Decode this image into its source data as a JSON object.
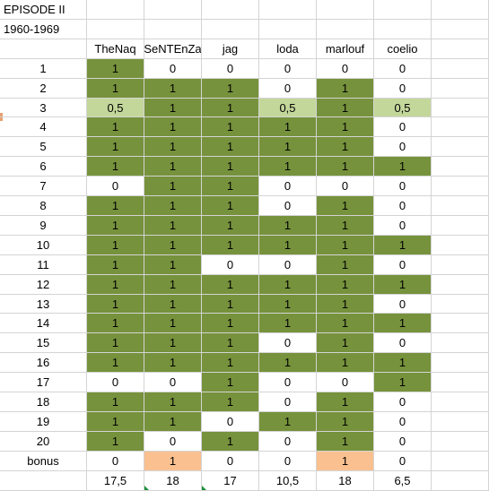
{
  "title": "EPISODE II",
  "period": "1960-1969",
  "columns": [
    "TheNaq",
    "SeNTEnZa",
    "jag",
    "loda",
    "marlouf",
    "coelio"
  ],
  "colors": {
    "green": "#76923c",
    "light_green": "#c4d79b",
    "orange": "#fac090",
    "white": "#ffffff",
    "grid": "#d4d4d4"
  },
  "rows": [
    {
      "label": "1",
      "cells": [
        [
          "1",
          "g"
        ],
        [
          "0",
          "w"
        ],
        [
          "0",
          "w"
        ],
        [
          "0",
          "w"
        ],
        [
          "0",
          "w"
        ],
        [
          "0",
          "w"
        ]
      ]
    },
    {
      "label": "2",
      "cells": [
        [
          "1",
          "g"
        ],
        [
          "1",
          "g"
        ],
        [
          "1",
          "g"
        ],
        [
          "0",
          "w"
        ],
        [
          "1",
          "g"
        ],
        [
          "0",
          "w"
        ]
      ]
    },
    {
      "label": "3",
      "cells": [
        [
          "0,5",
          "lg"
        ],
        [
          "1",
          "g"
        ],
        [
          "1",
          "g"
        ],
        [
          "0,5",
          "lg"
        ],
        [
          "1",
          "g"
        ],
        [
          "0,5",
          "lg"
        ]
      ]
    },
    {
      "label": "4",
      "cells": [
        [
          "1",
          "g"
        ],
        [
          "1",
          "g"
        ],
        [
          "1",
          "g"
        ],
        [
          "1",
          "g"
        ],
        [
          "1",
          "g"
        ],
        [
          "0",
          "w"
        ]
      ]
    },
    {
      "label": "5",
      "cells": [
        [
          "1",
          "g"
        ],
        [
          "1",
          "g"
        ],
        [
          "1",
          "g"
        ],
        [
          "1",
          "g"
        ],
        [
          "1",
          "g"
        ],
        [
          "0",
          "w"
        ]
      ]
    },
    {
      "label": "6",
      "cells": [
        [
          "1",
          "g"
        ],
        [
          "1",
          "g"
        ],
        [
          "1",
          "g"
        ],
        [
          "1",
          "g"
        ],
        [
          "1",
          "g"
        ],
        [
          "1",
          "g"
        ]
      ]
    },
    {
      "label": "7",
      "cells": [
        [
          "0",
          "w"
        ],
        [
          "1",
          "g"
        ],
        [
          "1",
          "g"
        ],
        [
          "0",
          "w"
        ],
        [
          "0",
          "w"
        ],
        [
          "0",
          "w"
        ]
      ]
    },
    {
      "label": "8",
      "cells": [
        [
          "1",
          "g"
        ],
        [
          "1",
          "g"
        ],
        [
          "1",
          "g"
        ],
        [
          "0",
          "w"
        ],
        [
          "1",
          "g"
        ],
        [
          "0",
          "w"
        ]
      ]
    },
    {
      "label": "9",
      "cells": [
        [
          "1",
          "g"
        ],
        [
          "1",
          "g"
        ],
        [
          "1",
          "g"
        ],
        [
          "1",
          "g"
        ],
        [
          "1",
          "g"
        ],
        [
          "0",
          "w"
        ]
      ]
    },
    {
      "label": "10",
      "cells": [
        [
          "1",
          "g"
        ],
        [
          "1",
          "g"
        ],
        [
          "1",
          "g"
        ],
        [
          "1",
          "g"
        ],
        [
          "1",
          "g"
        ],
        [
          "1",
          "g"
        ]
      ]
    },
    {
      "label": "11",
      "cells": [
        [
          "1",
          "g"
        ],
        [
          "1",
          "g"
        ],
        [
          "0",
          "w"
        ],
        [
          "0",
          "w"
        ],
        [
          "1",
          "g"
        ],
        [
          "0",
          "w"
        ]
      ]
    },
    {
      "label": "12",
      "cells": [
        [
          "1",
          "g"
        ],
        [
          "1",
          "g"
        ],
        [
          "1",
          "g"
        ],
        [
          "1",
          "g"
        ],
        [
          "1",
          "g"
        ],
        [
          "1",
          "g"
        ]
      ]
    },
    {
      "label": "13",
      "cells": [
        [
          "1",
          "g"
        ],
        [
          "1",
          "g"
        ],
        [
          "1",
          "g"
        ],
        [
          "1",
          "g"
        ],
        [
          "1",
          "g"
        ],
        [
          "0",
          "w"
        ]
      ]
    },
    {
      "label": "14",
      "cells": [
        [
          "1",
          "g"
        ],
        [
          "1",
          "g"
        ],
        [
          "1",
          "g"
        ],
        [
          "1",
          "g"
        ],
        [
          "1",
          "g"
        ],
        [
          "1",
          "g"
        ]
      ]
    },
    {
      "label": "15",
      "cells": [
        [
          "1",
          "g"
        ],
        [
          "1",
          "g"
        ],
        [
          "1",
          "g"
        ],
        [
          "0",
          "w"
        ],
        [
          "1",
          "g"
        ],
        [
          "0",
          "w"
        ]
      ]
    },
    {
      "label": "16",
      "cells": [
        [
          "1",
          "g"
        ],
        [
          "1",
          "g"
        ],
        [
          "1",
          "g"
        ],
        [
          "1",
          "g"
        ],
        [
          "1",
          "g"
        ],
        [
          "1",
          "g"
        ]
      ]
    },
    {
      "label": "17",
      "cells": [
        [
          "0",
          "w"
        ],
        [
          "0",
          "w"
        ],
        [
          "1",
          "g"
        ],
        [
          "0",
          "w"
        ],
        [
          "0",
          "w"
        ],
        [
          "1",
          "g"
        ]
      ]
    },
    {
      "label": "18",
      "cells": [
        [
          "1",
          "g"
        ],
        [
          "1",
          "g"
        ],
        [
          "1",
          "g"
        ],
        [
          "0",
          "w"
        ],
        [
          "1",
          "g"
        ],
        [
          "0",
          "w"
        ]
      ]
    },
    {
      "label": "19",
      "cells": [
        [
          "1",
          "g"
        ],
        [
          "1",
          "g"
        ],
        [
          "0",
          "w"
        ],
        [
          "1",
          "g"
        ],
        [
          "1",
          "g"
        ],
        [
          "0",
          "w"
        ]
      ]
    },
    {
      "label": "20",
      "cells": [
        [
          "1",
          "g"
        ],
        [
          "0",
          "w"
        ],
        [
          "1",
          "g"
        ],
        [
          "0",
          "w"
        ],
        [
          "1",
          "g"
        ],
        [
          "0",
          "w"
        ]
      ]
    },
    {
      "label": "bonus",
      "cells": [
        [
          "0",
          "w"
        ],
        [
          "1",
          "o"
        ],
        [
          "0",
          "w"
        ],
        [
          "0",
          "w"
        ],
        [
          "1",
          "o"
        ],
        [
          "0",
          "w"
        ]
      ]
    }
  ],
  "totals": [
    "17,5",
    "18",
    "17",
    "10,5",
    "18",
    "6,5"
  ]
}
